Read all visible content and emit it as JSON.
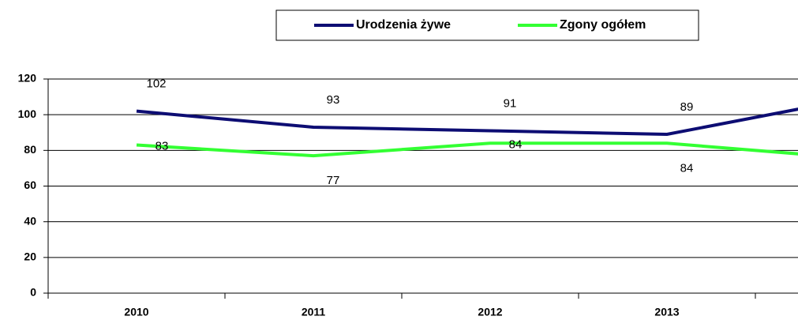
{
  "chart_data": {
    "type": "line",
    "categories": [
      "2010",
      "2011",
      "2012",
      "2013",
      null
    ],
    "series": [
      {
        "name": "Urodzenia żywe",
        "color": "#0d0d73",
        "values": [
          102,
          93,
          91,
          89,
          108
        ]
      },
      {
        "name": "Zgony ogółem",
        "color": "#33ff33",
        "values": [
          83,
          77,
          84,
          84,
          76
        ]
      }
    ],
    "ylim": [
      0,
      120
    ],
    "yticks": [
      0,
      20,
      40,
      60,
      80,
      100,
      120
    ],
    "grid": true,
    "legend": "top"
  }
}
